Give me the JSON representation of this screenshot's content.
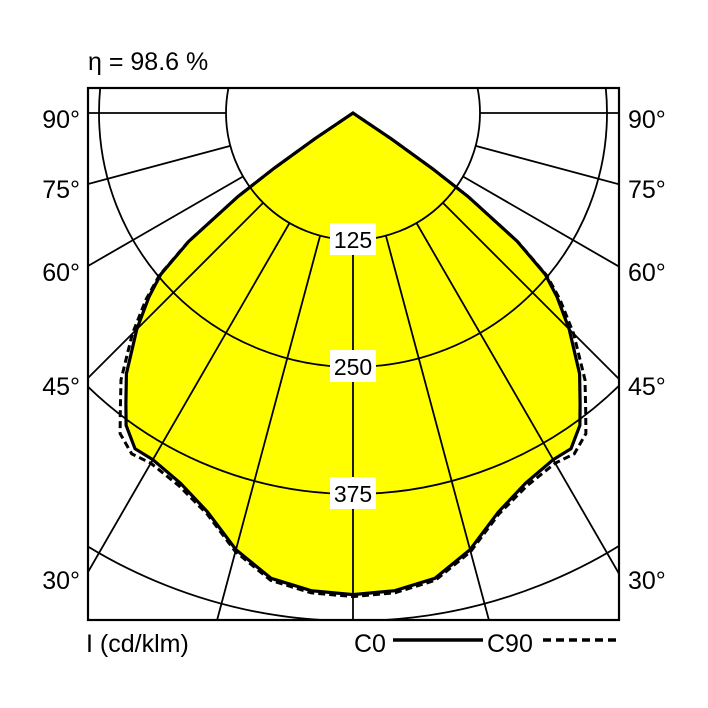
{
  "header": {
    "efficiency": "η = 98.6 %"
  },
  "footer": {
    "unit_label": "I (cd/klm)",
    "legend_c0": "C0",
    "legend_c90": "C90"
  },
  "colors": {
    "fill": "#ffff00",
    "line": "#000000"
  },
  "chart_data": {
    "type": "polar",
    "title": "η = 98.6 %",
    "unit": "I (cd/klm)",
    "angle_labels": [
      "90°",
      "75°",
      "60°",
      "45°",
      "30°"
    ],
    "ring_labels": [
      "125",
      "250",
      "375"
    ],
    "rings": [
      125,
      250,
      375,
      500
    ],
    "radial_angles": [
      0,
      15,
      30,
      45,
      60,
      75,
      90
    ],
    "gamma": [
      0,
      5,
      10,
      15,
      20,
      25,
      30,
      33,
      36,
      38,
      41,
      45,
      48,
      50,
      52,
      54,
      55,
      56,
      57
    ],
    "series": [
      {
        "name": "C0",
        "style": "solid",
        "values": [
          474,
          472,
          465,
          445,
          418,
          402,
          394,
          394,
          380,
          363,
          340,
          301,
          270,
          247,
          205,
          140,
          95,
          45,
          0
        ]
      },
      {
        "name": "C90",
        "style": "dashed",
        "values": [
          476,
          474,
          467,
          447,
          420,
          405,
          398,
          400,
          390,
          372,
          348,
          307,
          274,
          249,
          206,
          140,
          95,
          45,
          0
        ]
      }
    ]
  }
}
